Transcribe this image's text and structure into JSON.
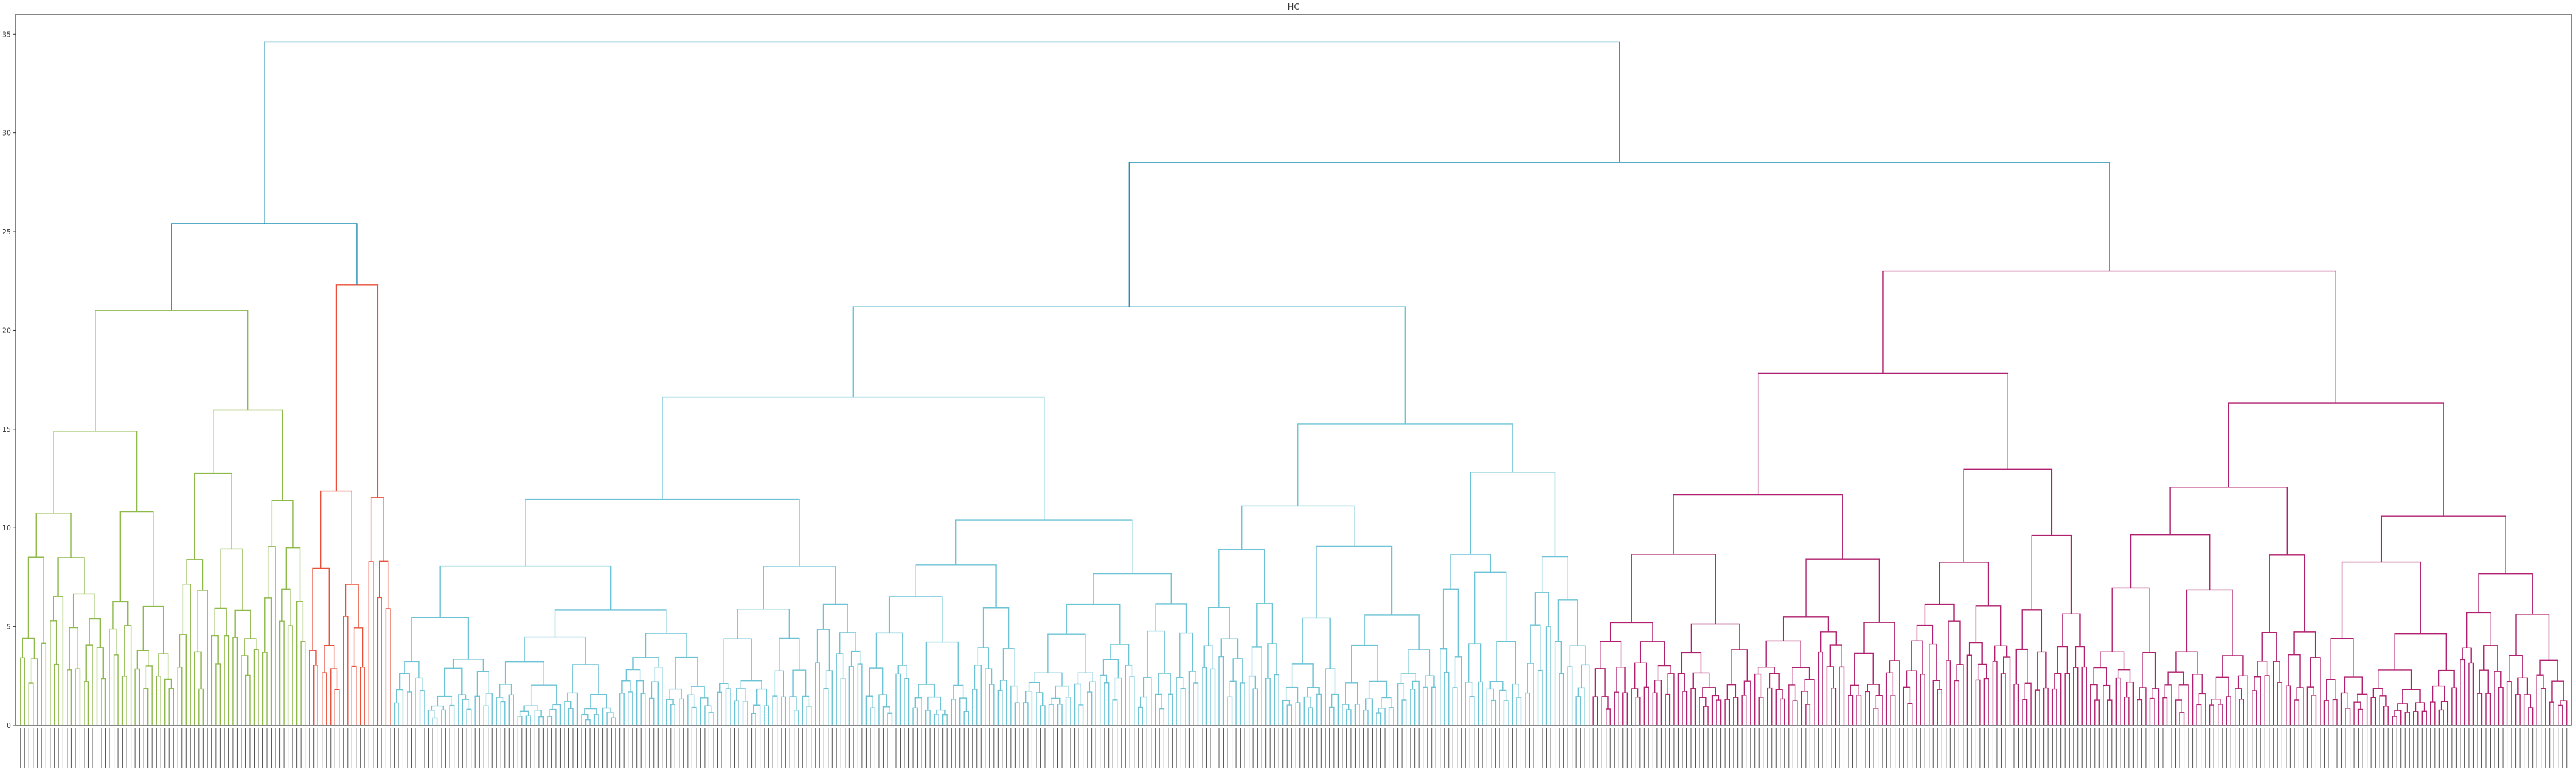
{
  "chart_data": {
    "type": "dendrogram",
    "title": "HC",
    "xlabel": "",
    "ylabel": "",
    "ylim": [
      0,
      36
    ],
    "yticks": [
      0,
      5,
      10,
      15,
      20,
      25,
      30,
      35
    ],
    "grid": false,
    "legend": "none",
    "leaf_count": 600,
    "leaf_labels_legible": false,
    "cut_height": 23,
    "colors": {
      "above_cut": "#1f8fb4",
      "axes": "#333333"
    },
    "clusters": [
      {
        "color": "#8db84a",
        "leaf_range": [
          0,
          68
        ],
        "root_height": 21.0
      },
      {
        "color": "#e8503a",
        "leaf_range": [
          68,
          88
        ],
        "root_height": 22.3
      },
      {
        "color": "#6cc3d5",
        "leaf_range": [
          88,
          370
        ],
        "root_height": 21.2
      },
      {
        "color": "#b0206e",
        "leaf_range": [
          370,
          600
        ],
        "root_height": 23.0
      }
    ],
    "top_merges": [
      {
        "name": "green-red",
        "height": 25.4
      },
      {
        "name": "cyan-magenta",
        "height": 28.5
      },
      {
        "name": "root",
        "height": 34.6
      }
    ]
  }
}
